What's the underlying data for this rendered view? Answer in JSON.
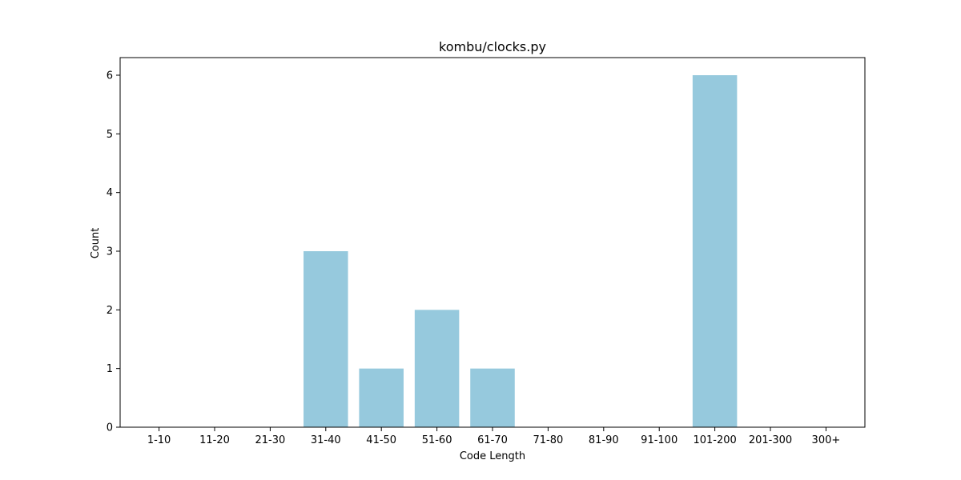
{
  "chart_data": {
    "type": "bar",
    "title": "kombu/clocks.py",
    "xlabel": "Code Length",
    "ylabel": "Count",
    "categories": [
      "1-10",
      "11-20",
      "21-30",
      "31-40",
      "41-50",
      "51-60",
      "61-70",
      "71-80",
      "81-90",
      "91-100",
      "101-200",
      "201-300",
      "300+"
    ],
    "values": [
      0,
      0,
      0,
      3,
      1,
      2,
      1,
      0,
      0,
      0,
      6,
      0,
      0
    ],
    "ylim": [
      0,
      6.3
    ],
    "yticks": [
      0,
      1,
      2,
      3,
      4,
      5,
      6
    ],
    "grid": false,
    "legend": "none",
    "colors": {
      "bar": "#96c9dd",
      "axis": "#000000",
      "background": "#ffffff"
    }
  }
}
